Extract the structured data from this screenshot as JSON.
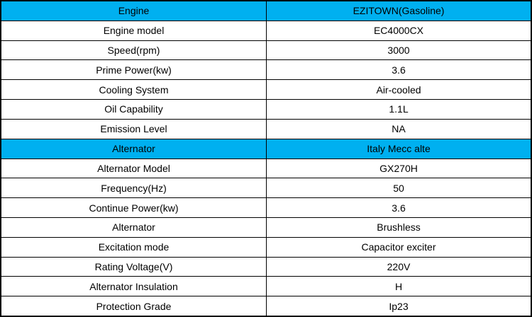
{
  "table": {
    "colors": {
      "header_bg": "#00B0F0",
      "border": "#000000",
      "row_bg": "#FFFFFF",
      "text": "#000000"
    },
    "rows": [
      {
        "label": "Engine",
        "value": "EZITOWN(Gasoline)",
        "type": "header"
      },
      {
        "label": "Engine model",
        "value": "EC4000CX",
        "type": "data"
      },
      {
        "label": "Speed(rpm)",
        "value": "3000",
        "type": "data"
      },
      {
        "label": "Prime Power(kw)",
        "value": "3.6",
        "type": "data"
      },
      {
        "label": "Cooling System",
        "value": "Air-cooled",
        "type": "data"
      },
      {
        "label": "Oil Capability",
        "value": "1.1L",
        "type": "data"
      },
      {
        "label": "Emission Level",
        "value": "NA",
        "type": "data"
      },
      {
        "label": "Alternator",
        "value": "Italy Mecc alte",
        "type": "header"
      },
      {
        "label": "Alternator Model",
        "value": "GX270H",
        "type": "data"
      },
      {
        "label": "Frequency(Hz)",
        "value": "50",
        "type": "data"
      },
      {
        "label": "Continue Power(kw)",
        "value": "3.6",
        "type": "data"
      },
      {
        "label": "Alternator",
        "value": "Brushless",
        "type": "data"
      },
      {
        "label": "Excitation mode",
        "value": "Capacitor exciter",
        "type": "data"
      },
      {
        "label": "Rating Voltage(V)",
        "value": "220V",
        "type": "data"
      },
      {
        "label": "Alternator Insulation",
        "value": "H",
        "type": "data"
      },
      {
        "label": "Protection Grade",
        "value": "Ip23",
        "type": "data"
      }
    ]
  }
}
